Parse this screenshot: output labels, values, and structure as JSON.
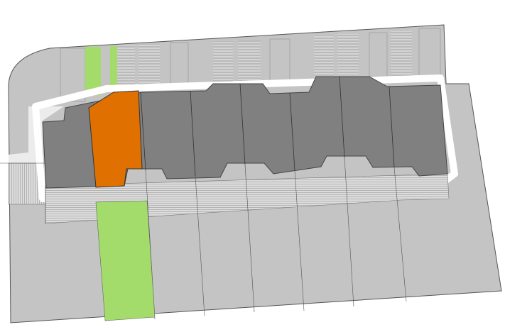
{
  "colors": {
    "background": "#ffffff",
    "plot": "#c4c4c4",
    "plot_outline": "#555555",
    "building": "#808080",
    "highlighted_unit": "#e07000",
    "green_space": "#a3dc6a",
    "paving": "#d9d9d9",
    "hatch": "#9a9a9a"
  },
  "highlighted_unit_index": 1,
  "unit_count": 8
}
